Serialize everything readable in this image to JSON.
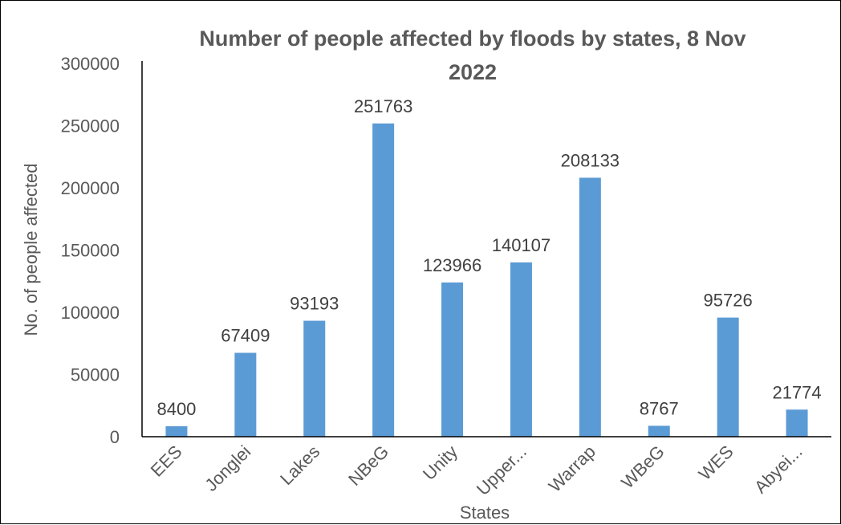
{
  "chart_data": {
    "type": "bar",
    "title_lines": [
      "Number of people affected by floods by states, 8 Nov",
      "2022"
    ],
    "xlabel": "States",
    "ylabel": "No. of people affected",
    "categories": [
      "EES",
      "Jonglei",
      "Lakes",
      "NBeG",
      "Unity",
      "Upper...",
      "Warrap",
      "WBeG",
      "WES",
      "Abyei..."
    ],
    "values": [
      8400,
      67409,
      93193,
      251763,
      123966,
      140107,
      208133,
      8767,
      95726,
      21774
    ],
    "data_labels": [
      "8400",
      "67409",
      "93193",
      "251763",
      "123966",
      "140107",
      "208133",
      "8767",
      "95726",
      "21774"
    ],
    "ylim": [
      0,
      300000
    ],
    "yticks": [
      "0",
      "50000",
      "100000",
      "150000",
      "200000",
      "250000",
      "300000"
    ],
    "bar_color": "#5B9BD5",
    "grid": false,
    "legend": "none"
  }
}
